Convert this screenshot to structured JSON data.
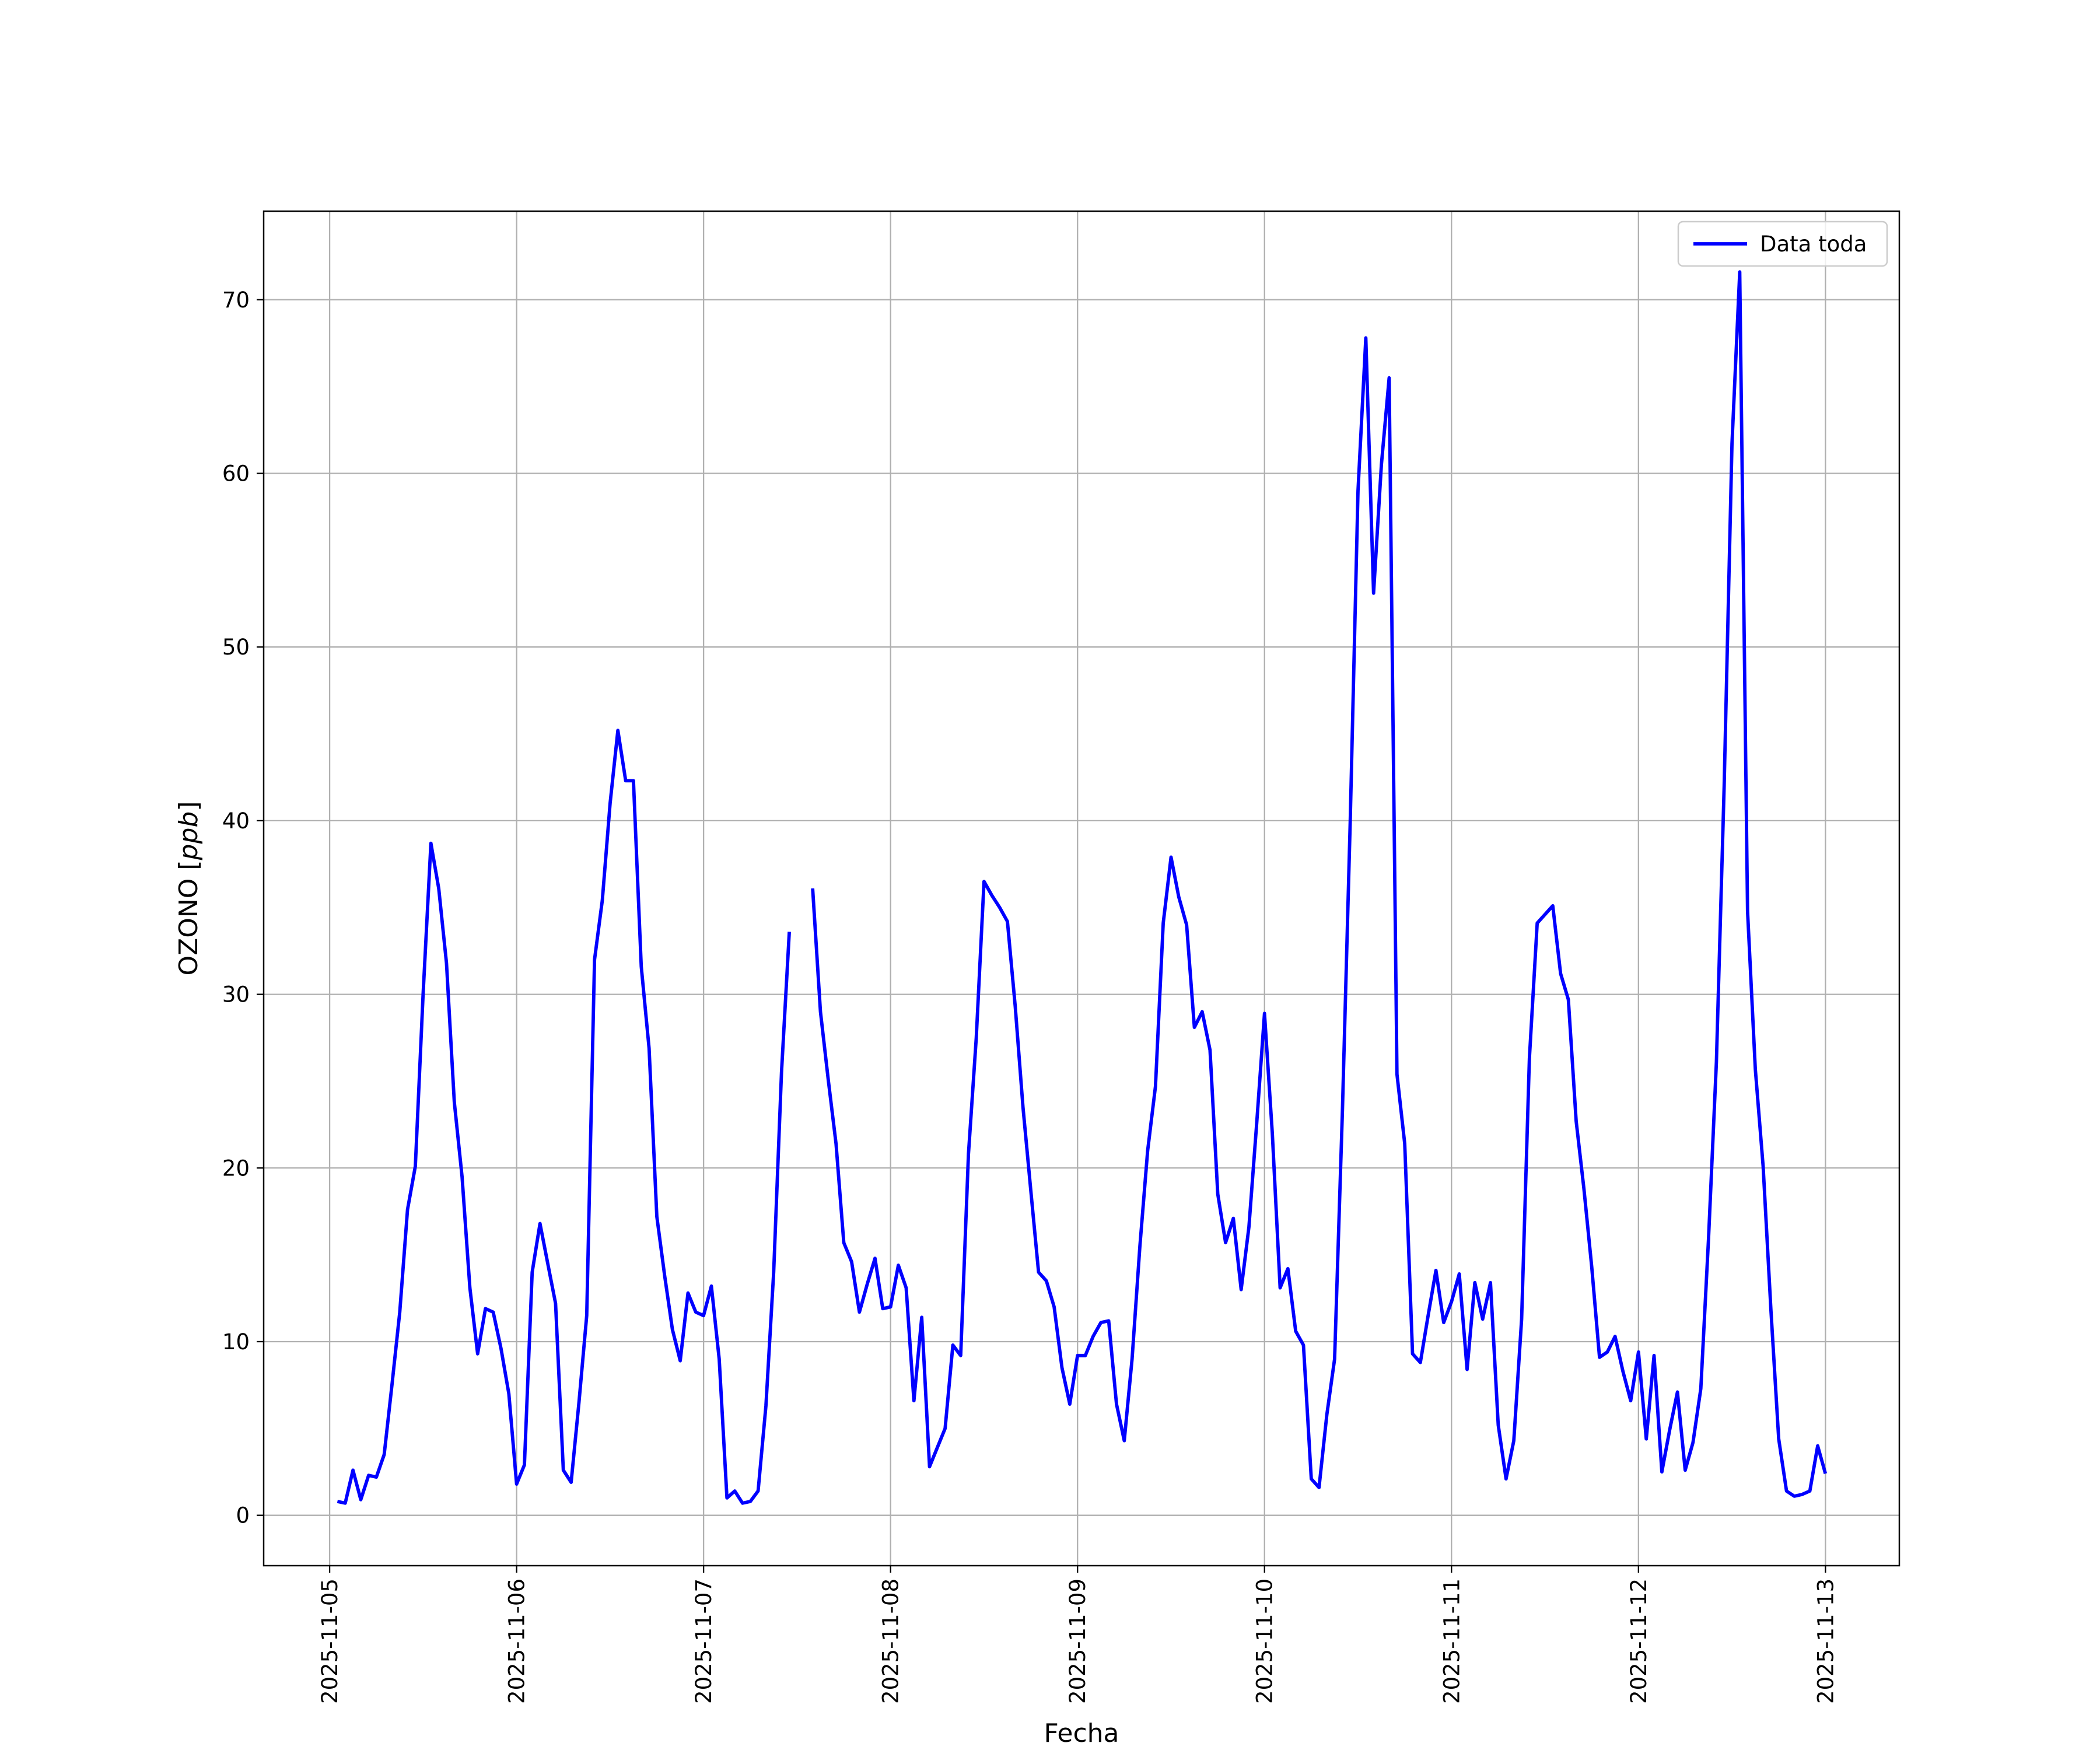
{
  "chart_data": {
    "type": "line",
    "title": "",
    "xlabel": "Fecha",
    "ylabel_text": "OZONO [",
    "ylabel_unit": "ppb",
    "ylabel_close": "]",
    "xlim": [
      "2025-11-04 15:32",
      "2025-11-13 09:29"
    ],
    "ylim": [
      -2.9,
      75.1
    ],
    "grid": true,
    "legend_placement": "top-right",
    "x_tick_labels": [
      "2025-11-05",
      "2025-11-06",
      "2025-11-07",
      "2025-11-08",
      "2025-11-09",
      "2025-11-10",
      "2025-11-11",
      "2025-11-12",
      "2025-11-13"
    ],
    "y_ticks": [
      0,
      10,
      20,
      30,
      40,
      50,
      60,
      70
    ],
    "y_tick_labels": [
      "0",
      "10",
      "20",
      "30",
      "40",
      "50",
      "60",
      "70"
    ],
    "series": [
      {
        "name": "Data toda",
        "color": "#0000ff",
        "x": [
          "2025-11-05 01:00",
          "2025-11-05 02:00",
          "2025-11-05 03:00",
          "2025-11-05 04:00",
          "2025-11-05 05:00",
          "2025-11-05 06:00",
          "2025-11-05 07:00",
          "2025-11-05 08:00",
          "2025-11-05 09:00",
          "2025-11-05 10:00",
          "2025-11-05 11:00",
          "2025-11-05 12:00",
          "2025-11-05 13:00",
          "2025-11-05 14:00",
          "2025-11-05 15:00",
          "2025-11-05 16:00",
          "2025-11-05 17:00",
          "2025-11-05 18:00",
          "2025-11-05 19:00",
          "2025-11-05 20:00",
          "2025-11-05 21:00",
          "2025-11-05 22:00",
          "2025-11-05 23:00",
          "2025-11-06 00:00",
          "2025-11-06 01:00",
          "2025-11-06 02:00",
          "2025-11-06 03:00",
          "2025-11-06 04:00",
          "2025-11-06 05:00",
          "2025-11-06 06:00",
          "2025-11-06 07:00",
          "2025-11-06 08:00",
          "2025-11-06 09:00",
          "2025-11-06 10:00",
          "2025-11-06 11:00",
          "2025-11-06 12:00",
          "2025-11-06 13:00",
          "2025-11-06 14:00",
          "2025-11-06 15:00",
          "2025-11-06 16:00",
          "2025-11-06 17:00",
          "2025-11-06 18:00",
          "2025-11-06 19:00",
          "2025-11-06 20:00",
          "2025-11-06 21:00",
          "2025-11-06 22:00",
          "2025-11-06 23:00",
          "2025-11-07 00:00",
          "2025-11-07 01:00",
          "2025-11-07 02:00",
          "2025-11-07 03:00",
          "2025-11-07 04:00",
          "2025-11-07 05:00",
          "2025-11-07 06:00",
          "2025-11-07 07:00",
          "2025-11-07 08:00",
          "2025-11-07 09:00",
          "2025-11-07 10:00",
          "2025-11-07 11:00",
          "2025-11-07 12:00",
          "2025-11-07 13:00",
          "2025-11-07 14:00",
          "2025-11-07 15:00",
          "2025-11-07 16:00",
          "2025-11-07 17:00",
          "2025-11-07 18:00",
          "2025-11-07 19:00",
          "2025-11-07 20:00",
          "2025-11-07 21:00",
          "2025-11-07 22:00",
          "2025-11-07 23:00",
          "2025-11-08 00:00",
          "2025-11-08 01:00",
          "2025-11-08 02:00",
          "2025-11-08 03:00",
          "2025-11-08 04:00",
          "2025-11-08 05:00",
          "2025-11-08 06:00",
          "2025-11-08 07:00",
          "2025-11-08 08:00",
          "2025-11-08 09:00",
          "2025-11-08 10:00",
          "2025-11-08 11:00",
          "2025-11-08 12:00",
          "2025-11-08 13:00",
          "2025-11-08 14:00",
          "2025-11-08 15:00",
          "2025-11-08 16:00",
          "2025-11-08 17:00",
          "2025-11-08 18:00",
          "2025-11-08 19:00",
          "2025-11-08 20:00",
          "2025-11-08 21:00",
          "2025-11-08 22:00",
          "2025-11-08 23:00",
          "2025-11-09 00:00",
          "2025-11-09 01:00",
          "2025-11-09 02:00",
          "2025-11-09 03:00",
          "2025-11-09 04:00",
          "2025-11-09 05:00",
          "2025-11-09 06:00",
          "2025-11-09 07:00",
          "2025-11-09 08:00",
          "2025-11-09 09:00",
          "2025-11-09 10:00",
          "2025-11-09 11:00",
          "2025-11-09 12:00",
          "2025-11-09 13:00",
          "2025-11-09 14:00",
          "2025-11-09 15:00",
          "2025-11-09 16:00",
          "2025-11-09 17:00",
          "2025-11-09 18:00",
          "2025-11-09 19:00",
          "2025-11-09 20:00",
          "2025-11-09 21:00",
          "2025-11-09 22:00",
          "2025-11-09 23:00",
          "2025-11-10 00:00",
          "2025-11-10 01:00",
          "2025-11-10 02:00",
          "2025-11-10 03:00",
          "2025-11-10 04:00",
          "2025-11-10 05:00",
          "2025-11-10 06:00",
          "2025-11-10 07:00",
          "2025-11-10 08:00",
          "2025-11-10 09:00",
          "2025-11-10 10:00",
          "2025-11-10 11:00",
          "2025-11-10 12:00",
          "2025-11-10 13:00",
          "2025-11-10 14:00",
          "2025-11-10 15:00",
          "2025-11-10 16:00",
          "2025-11-10 17:00",
          "2025-11-10 18:00",
          "2025-11-10 19:00",
          "2025-11-10 20:00",
          "2025-11-10 21:00",
          "2025-11-10 22:00",
          "2025-11-10 23:00",
          "2025-11-11 00:00",
          "2025-11-11 01:00",
          "2025-11-11 02:00",
          "2025-11-11 03:00",
          "2025-11-11 04:00",
          "2025-11-11 05:00",
          "2025-11-11 06:00",
          "2025-11-11 07:00",
          "2025-11-11 08:00",
          "2025-11-11 09:00",
          "2025-11-11 10:00",
          "2025-11-11 11:00",
          "2025-11-11 12:00",
          "2025-11-11 13:00",
          "2025-11-11 14:00",
          "2025-11-11 15:00",
          "2025-11-11 16:00",
          "2025-11-11 17:00",
          "2025-11-11 18:00",
          "2025-11-11 19:00",
          "2025-11-11 20:00",
          "2025-11-11 21:00",
          "2025-11-11 22:00",
          "2025-11-11 23:00",
          "2025-11-12 00:00",
          "2025-11-12 01:00",
          "2025-11-12 02:00",
          "2025-11-12 03:00",
          "2025-11-12 04:00",
          "2025-11-12 05:00",
          "2025-11-12 06:00",
          "2025-11-12 07:00",
          "2025-11-12 08:00",
          "2025-11-12 09:00",
          "2025-11-12 10:00",
          "2025-11-12 11:00",
          "2025-11-12 12:00",
          "2025-11-12 13:00",
          "2025-11-12 14:00",
          "2025-11-12 15:00",
          "2025-11-12 16:00",
          "2025-11-12 17:00",
          "2025-11-12 18:00",
          "2025-11-12 19:00",
          "2025-11-12 20:00",
          "2025-11-12 21:00",
          "2025-11-12 22:00",
          "2025-11-12 23:00",
          "2025-11-13 00:00"
        ],
        "y": [
          0.8,
          0.7,
          2.6,
          0.9,
          2.3,
          2.2,
          3.5,
          7.5,
          11.7,
          17.6,
          20.1,
          30.0,
          38.7,
          36.1,
          31.8,
          23.8,
          19.5,
          13.1,
          9.3,
          11.9,
          11.7,
          9.6,
          7.0,
          1.8,
          2.9,
          14.0,
          16.8,
          14.5,
          12.2,
          2.6,
          1.9,
          6.5,
          11.5,
          32.0,
          35.4,
          41.0,
          45.2,
          42.3,
          42.3,
          31.6,
          26.9,
          17.2,
          13.8,
          10.7,
          8.9,
          12.8,
          11.7,
          11.5,
          13.2,
          9.0,
          1.0,
          1.4,
          0.7,
          0.8,
          1.4,
          6.3,
          14.0,
          25.5,
          33.6,
          null,
          null,
          36.1,
          29.0,
          25.1,
          21.4,
          15.7,
          14.6,
          11.7,
          13.3,
          14.8,
          11.9,
          12.0,
          14.4,
          13.1,
          6.6,
          11.4,
          2.8,
          3.9,
          5.0,
          9.8,
          9.2,
          20.8,
          27.5,
          36.5,
          35.7,
          35.0,
          34.2,
          29.3,
          23.5,
          18.7,
          14.0,
          13.5,
          12.0,
          8.5,
          6.4,
          9.2,
          9.2,
          10.3,
          11.1,
          11.2,
          6.4,
          4.3,
          9.0,
          15.5,
          21.0,
          24.7,
          34.1,
          37.9,
          35.6,
          34.0,
          28.1,
          29.0,
          26.8,
          18.5,
          15.7,
          17.1,
          13.0,
          16.6,
          22.6,
          28.9,
          22.0,
          13.1,
          14.2,
          10.6,
          9.8,
          2.1,
          1.6,
          5.8,
          9.0,
          23.3,
          40.0,
          59.0,
          67.8,
          53.1,
          60.5,
          65.5,
          25.4,
          21.4,
          9.3,
          8.8,
          11.5,
          14.1,
          11.1,
          12.3,
          13.9,
          8.4,
          13.4,
          11.3,
          13.4,
          5.2,
          2.1,
          4.3,
          11.3,
          26.3,
          34.1,
          34.6,
          35.1,
          31.2,
          29.7,
          22.7,
          18.8,
          14.3,
          9.1,
          9.4,
          10.3,
          8.3,
          6.6,
          9.4,
          4.4,
          9.2,
          2.5,
          4.9,
          7.1,
          2.6,
          4.2,
          7.3,
          16.0,
          26.1,
          42.0,
          61.7,
          71.6,
          34.8,
          25.7,
          20.1,
          11.8,
          4.4,
          1.4,
          1.1,
          1.2,
          1.4,
          4.0,
          2.4
        ]
      }
    ]
  }
}
